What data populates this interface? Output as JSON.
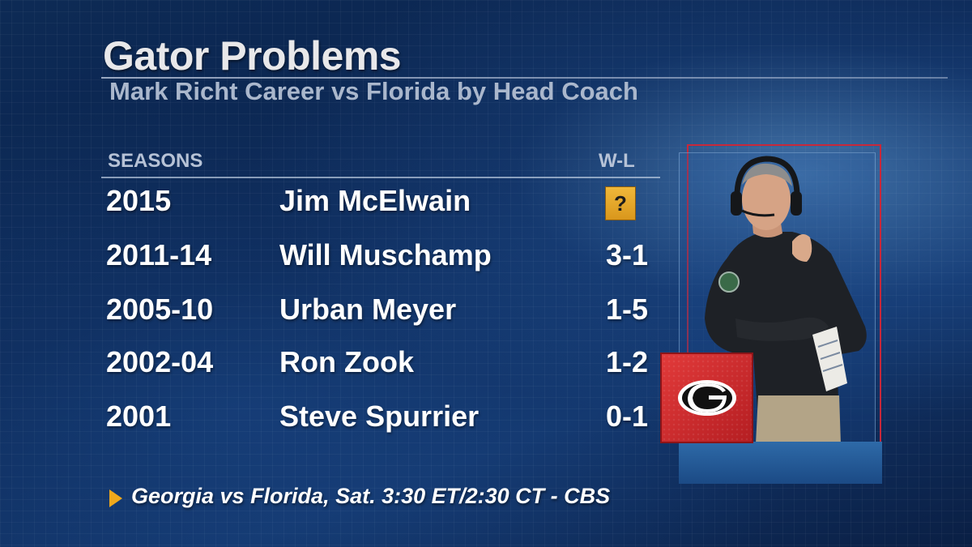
{
  "title": "Gator Problems",
  "subtitle": "Mark Richt Career vs Florida by Head Coach",
  "columns": {
    "seasons": "SEASONS",
    "wl": "W-L"
  },
  "rows": [
    {
      "season": "2015",
      "coach": "Jim McElwain",
      "wl": "?"
    },
    {
      "season": "2011-14",
      "coach": "Will Muschamp",
      "wl": "3-1"
    },
    {
      "season": "2005-10",
      "coach": "Urban Meyer",
      "wl": "1-5"
    },
    {
      "season": "2002-04",
      "coach": "Ron Zook",
      "wl": "1-2"
    },
    {
      "season": "2001",
      "coach": "Steve Spurrier",
      "wl": "0-1"
    }
  ],
  "footer": "Georgia vs Florida, Sat. 3:30 ET/2:30 CT - CBS",
  "icons": {
    "footer_arrow": "play-arrow-icon",
    "team_logo": "georgia-g-logo-icon",
    "photo": "coach-photo"
  },
  "colors": {
    "accent": "#f0a81c",
    "question_box": "#e2a52a",
    "logo_red": "#d42c2f",
    "panel_border": "#c8283a"
  }
}
